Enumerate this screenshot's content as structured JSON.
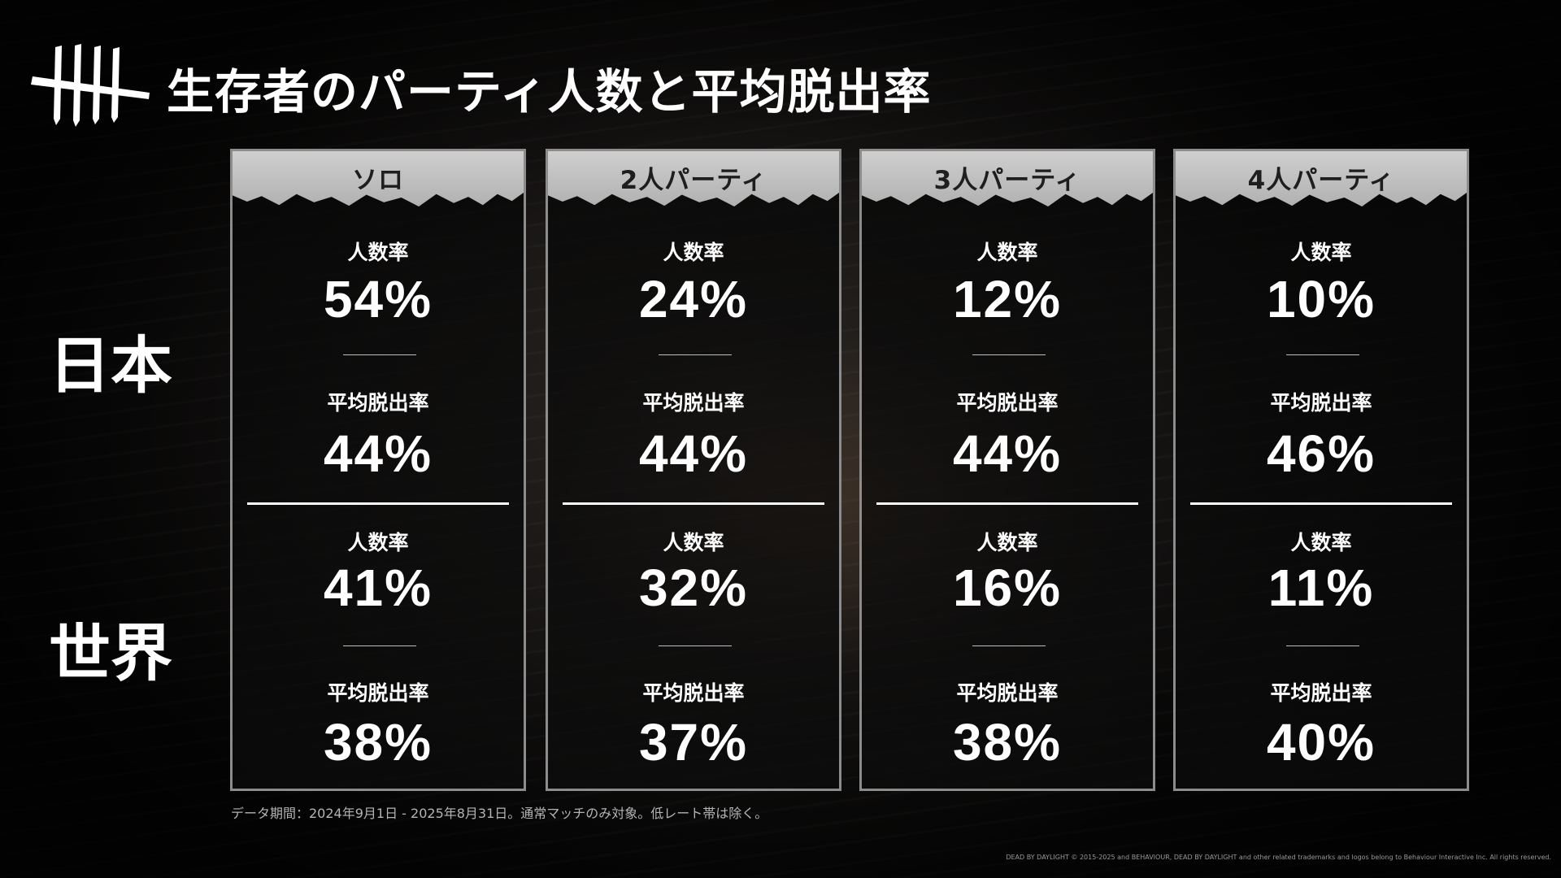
{
  "header": {
    "title": "生存者のパーティ人数と平均脱出率"
  },
  "regions": {
    "japan": "日本",
    "world": "世界"
  },
  "metric_labels": {
    "party_rate": "人数率",
    "escape_rate": "平均脱出率"
  },
  "cards": [
    {
      "title": "ソロ",
      "japan": {
        "party_rate": "54%",
        "escape_rate": "44%"
      },
      "world": {
        "party_rate": "41%",
        "escape_rate": "38%"
      }
    },
    {
      "title": "2人パーティ",
      "japan": {
        "party_rate": "24%",
        "escape_rate": "44%"
      },
      "world": {
        "party_rate": "32%",
        "escape_rate": "37%"
      }
    },
    {
      "title": "3人パーティ",
      "japan": {
        "party_rate": "12%",
        "escape_rate": "44%"
      },
      "world": {
        "party_rate": "16%",
        "escape_rate": "38%"
      }
    },
    {
      "title": "4人パーティ",
      "japan": {
        "party_rate": "10%",
        "escape_rate": "46%"
      },
      "world": {
        "party_rate": "11%",
        "escape_rate": "40%"
      }
    }
  ],
  "footnote": "データ期間：2024年9月1日 - 2025年8月31日。通常マッチのみ対象。低レート帯は除く。",
  "copyright": "DEAD BY DAYLIGHT © 2015-2025 and BEHAVIOUR, DEAD BY DAYLIGHT and other related trademarks and logos belong to Behaviour Interactive Inc. All rights reserved.",
  "colors": {
    "background": "#141211",
    "card_border": "#8c8c8c",
    "card_header": "#bfbfbf",
    "text": "#ffffff"
  },
  "icons": {
    "logo": "dead-by-daylight-claw-logo-icon"
  }
}
